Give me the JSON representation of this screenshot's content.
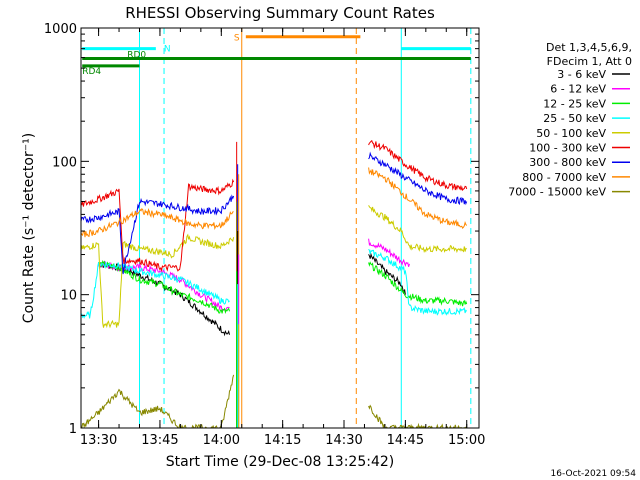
{
  "chart_data": {
    "type": "line",
    "title": "RHESSI Observing Summary Count Rates",
    "xlabel": "Start Time (29-Dec-08 13:25:42)",
    "ylabel": "Count Rate (s⁻¹ detector⁻¹)",
    "footer": "16-Oct-2021 09:54",
    "x_scale": "time",
    "y_scale": "log",
    "xlim": [
      "13:25:42",
      "15:03:00"
    ],
    "ylim": [
      1,
      1000
    ],
    "x_ticks": [
      "13:30",
      "13:45",
      "14:00",
      "14:15",
      "14:30",
      "14:45",
      "15:00"
    ],
    "y_ticks": [
      "1",
      "10",
      "100",
      "1000"
    ],
    "legend": {
      "placement": "right",
      "header_lines": [
        "Det 1,3,4,5,6,9,",
        "FDecim 1, Att 0"
      ],
      "entries": [
        {
          "label": "3 - 6 keV",
          "color": "#000000"
        },
        {
          "label": "6 - 12 keV",
          "color": "#ff00ff"
        },
        {
          "label": "12 - 25 keV",
          "color": "#00ee00"
        },
        {
          "label": "25 - 50 keV",
          "color": "#00ffff"
        },
        {
          "label": "50 - 100 keV",
          "color": "#cccc00"
        },
        {
          "label": "100 - 300 keV",
          "color": "#ee0000"
        },
        {
          "label": "300 - 800 keV",
          "color": "#0000ee"
        },
        {
          "label": "800 - 7000 keV",
          "color": "#ff8800"
        },
        {
          "label": "7000 - 15000 keV",
          "color": "#888800"
        }
      ]
    },
    "flag_bars": [
      {
        "label": "N",
        "color": "#00ffff",
        "value": 700,
        "segments": [
          [
            "13:26",
            "13:44"
          ],
          [
            "14:44",
            "15:01"
          ]
        ]
      },
      {
        "label": "S",
        "color": "#ff8800",
        "value": 860,
        "segments": [
          [
            "14:06",
            "14:34"
          ]
        ]
      },
      {
        "label": "RD0",
        "color": "#008800",
        "value": 590,
        "segments": [
          [
            "13:26",
            "15:01"
          ]
        ]
      },
      {
        "label": "RD4",
        "color": "#008800",
        "value": 520,
        "segments": [
          [
            "13:26",
            "13:40"
          ]
        ]
      }
    ],
    "vertical_markers": [
      {
        "time": "13:40",
        "color": "#00ffff",
        "style": "solid"
      },
      {
        "time": "13:46",
        "color": "#00ffff",
        "style": "dashed"
      },
      {
        "time": "14:05",
        "color": "#ff8800",
        "style": "solid"
      },
      {
        "time": "14:33",
        "color": "#ff8800",
        "style": "dashed"
      },
      {
        "time": "14:44",
        "color": "#00ffff",
        "style": "solid"
      },
      {
        "time": "15:01",
        "color": "#00ffff",
        "style": "dashed"
      }
    ],
    "series": [
      {
        "name": "3 - 6 keV",
        "color": "#000000",
        "segments": [
          [
            [
              "13:30",
              17
            ],
            [
              "13:35",
              16
            ],
            [
              "13:37",
              15.5
            ],
            [
              "13:40",
              14
            ],
            [
              "13:45",
              12
            ],
            [
              "13:50",
              10
            ],
            [
              "13:55",
              7.5
            ],
            [
              "14:00",
              5.5
            ],
            [
              "14:02",
              5.0
            ]
          ],
          [
            [
              "14:36",
              20
            ],
            [
              "14:40",
              15
            ],
            [
              "14:44",
              12
            ],
            [
              "14:45",
              10
            ]
          ]
        ]
      },
      {
        "name": "6 - 12 keV",
        "color": "#ff00ff",
        "segments": [
          [
            [
              "13:30",
              17
            ],
            [
              "13:35",
              16
            ],
            [
              "13:40",
              16
            ],
            [
              "13:45",
              15
            ],
            [
              "13:50",
              13
            ],
            [
              "13:55",
              10
            ],
            [
              "14:00",
              8
            ],
            [
              "14:02",
              8
            ]
          ],
          [
            [
              "14:36",
              25
            ],
            [
              "14:40",
              22
            ],
            [
              "14:44",
              18
            ],
            [
              "14:46",
              17
            ]
          ]
        ]
      },
      {
        "name": "12 - 25 keV",
        "color": "#00ee00",
        "segments": [
          [
            [
              "13:30",
              17
            ],
            [
              "13:35",
              16
            ],
            [
              "13:40",
              13
            ],
            [
              "13:45",
              12
            ],
            [
              "13:50",
              10
            ],
            [
              "13:55",
              9
            ],
            [
              "14:00",
              7.5
            ],
            [
              "14:02",
              7.5
            ]
          ],
          [
            [
              "14:36",
              17
            ],
            [
              "14:40",
              14
            ],
            [
              "14:45",
              10
            ],
            [
              "14:50",
              9
            ],
            [
              "14:55",
              9
            ],
            [
              "15:00",
              8.5
            ]
          ]
        ]
      },
      {
        "name": "25 - 50 keV",
        "color": "#00ffff",
        "segments": [
          [
            [
              "13:25:42",
              7
            ],
            [
              "13:28",
              7
            ],
            [
              "13:30",
              17
            ],
            [
              "13:35",
              16.5
            ],
            [
              "13:40",
              15
            ],
            [
              "13:45",
              14
            ],
            [
              "13:50",
              13
            ],
            [
              "13:55",
              11
            ],
            [
              "14:00",
              9
            ],
            [
              "14:02",
              9
            ]
          ],
          [
            [
              "14:36",
              21
            ],
            [
              "14:40",
              19
            ],
            [
              "14:45",
              15
            ],
            [
              "14:46",
              8
            ],
            [
              "14:50",
              7.5
            ],
            [
              "14:55",
              7.5
            ],
            [
              "15:00",
              7.5
            ]
          ]
        ]
      },
      {
        "name": "50 - 100 keV",
        "color": "#cccc00",
        "segments": [
          [
            [
              "13:25:42",
              22
            ],
            [
              "13:30",
              24
            ],
            [
              "13:31",
              6
            ],
            [
              "13:35",
              6
            ],
            [
              "13:36",
              24
            ],
            [
              "13:40",
              22
            ],
            [
              "13:45",
              21
            ],
            [
              "13:48",
              20
            ],
            [
              "13:52",
              27
            ],
            [
              "13:55",
              25
            ],
            [
              "14:00",
              23
            ],
            [
              "14:03",
              27
            ]
          ],
          [
            [
              "14:36",
              45
            ],
            [
              "14:40",
              38
            ],
            [
              "14:44",
              30
            ],
            [
              "14:46",
              23
            ],
            [
              "14:50",
              22
            ],
            [
              "14:55",
              22
            ],
            [
              "15:00",
              22
            ]
          ]
        ]
      },
      {
        "name": "100 - 300 keV",
        "color": "#ee0000",
        "segments": [
          [
            [
              "13:25:42",
              47
            ],
            [
              "13:30",
              52
            ],
            [
              "13:35",
              60
            ],
            [
              "13:36",
              18
            ],
            [
              "13:40",
              18
            ],
            [
              "13:45",
              16
            ],
            [
              "13:50",
              16
            ],
            [
              "13:52",
              65
            ],
            [
              "13:55",
              62
            ],
            [
              "14:00",
              60
            ],
            [
              "14:03",
              70
            ]
          ],
          [
            [
              "14:36",
              140
            ],
            [
              "14:40",
              125
            ],
            [
              "14:45",
              95
            ],
            [
              "14:50",
              75
            ],
            [
              "14:55",
              66
            ],
            [
              "15:00",
              62
            ]
          ]
        ]
      },
      {
        "name": "300 - 800 keV",
        "color": "#0000ee",
        "segments": [
          [
            [
              "13:25:42",
              36
            ],
            [
              "13:30",
              38
            ],
            [
              "13:35",
              42
            ],
            [
              "13:36",
              15
            ],
            [
              "13:40",
              50
            ],
            [
              "13:45",
              48
            ],
            [
              "13:50",
              45
            ],
            [
              "13:52",
              44
            ],
            [
              "13:55",
              42
            ],
            [
              "14:00",
              43
            ],
            [
              "14:03",
              55
            ]
          ],
          [
            [
              "14:36",
              110
            ],
            [
              "14:40",
              95
            ],
            [
              "14:45",
              75
            ],
            [
              "14:50",
              60
            ],
            [
              "14:55",
              52
            ],
            [
              "15:00",
              50
            ]
          ]
        ]
      },
      {
        "name": "800 - 7000 keV",
        "color": "#ff8800",
        "segments": [
          [
            [
              "13:25:42",
              28
            ],
            [
              "13:30",
              30
            ],
            [
              "13:35",
              35
            ],
            [
              "13:40",
              42
            ],
            [
              "13:45",
              40
            ],
            [
              "13:50",
              36
            ],
            [
              "13:52",
              34
            ],
            [
              "13:55",
              33
            ],
            [
              "14:00",
              33
            ],
            [
              "14:03",
              42
            ]
          ],
          [
            [
              "14:36",
              85
            ],
            [
              "14:40",
              75
            ],
            [
              "14:45",
              55
            ],
            [
              "14:50",
              40
            ],
            [
              "14:55",
              35
            ],
            [
              "15:00",
              33
            ]
          ]
        ]
      },
      {
        "name": "7000 - 15000 keV",
        "color": "#888800",
        "segments": [
          [
            [
              "13:25:42",
              1
            ],
            [
              "13:30",
              1.3
            ],
            [
              "13:35",
              1.9
            ],
            [
              "13:40",
              1.3
            ],
            [
              "13:45",
              1.4
            ],
            [
              "13:50",
              1
            ],
            [
              "14:00",
              1
            ],
            [
              "14:03",
              2.5
            ]
          ],
          [
            [
              "14:36",
              1.5
            ],
            [
              "14:40",
              1
            ],
            [
              "14:45",
              1
            ],
            [
              "15:00",
              1
            ]
          ]
        ]
      }
    ],
    "spike": {
      "time": "14:04",
      "peak_counts": [
        140,
        95,
        80,
        50,
        30,
        20,
        15,
        12,
        6
      ]
    },
    "grid": false
  }
}
